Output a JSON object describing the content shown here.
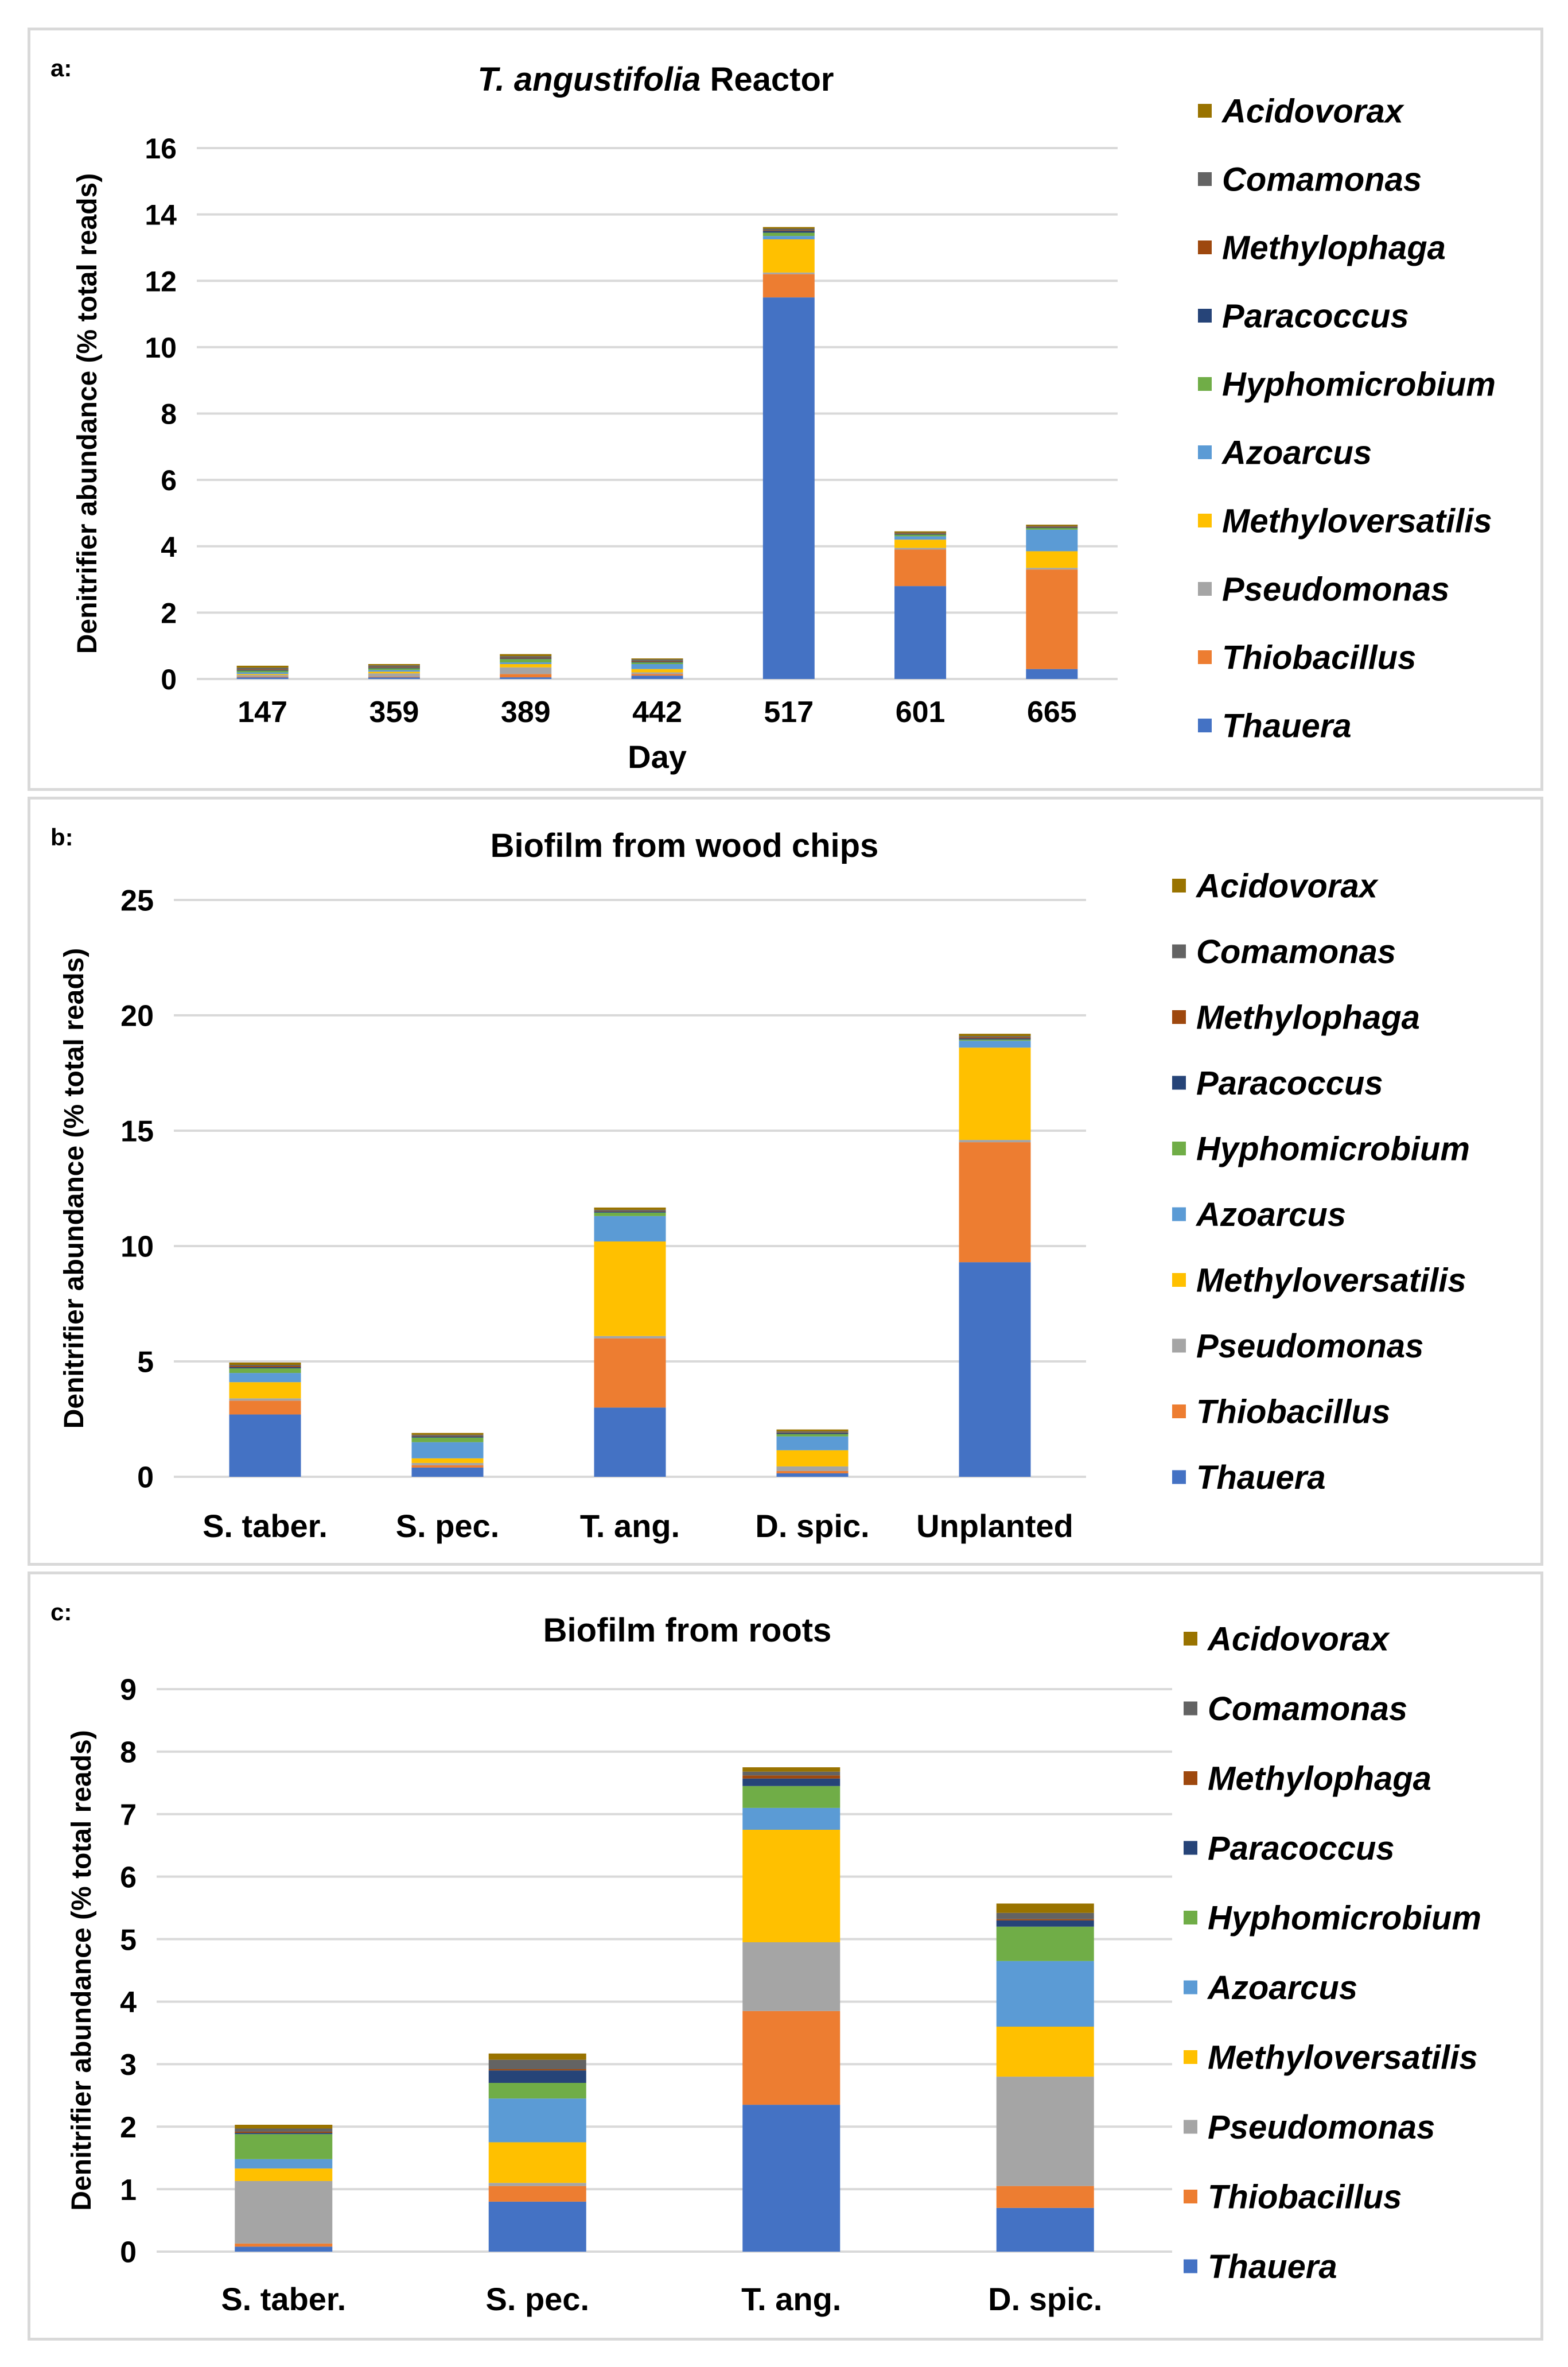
{
  "colors": {
    "Thauera": "#4472C4",
    "Thiobacillus": "#ED7D31",
    "Pseudomonas": "#A5A5A5",
    "Methyloversatilis": "#FFC000",
    "Azoarcus": "#5B9BD5",
    "Hyphomicrobium": "#70AD47",
    "Paracoccus": "#264478",
    "Methylophaga": "#9E480E",
    "Comamonas": "#636363",
    "Acidovorax": "#997300"
  },
  "chart_data": [
    {
      "panel": "a:",
      "type": "bar",
      "stacked": true,
      "title_italic": "T. angustifolia",
      "title_rest": " Reactor",
      "xlabel": "Day",
      "ylabel": "Denitrifier abundance (% total reads)",
      "ylim": [
        0,
        16
      ],
      "yticks": [
        "0",
        "2",
        "4",
        "6",
        "8",
        "10",
        "12",
        "14",
        "16"
      ],
      "grid": true,
      "legend_position": "right",
      "legend": [
        "Acidovorax",
        "Comamonas",
        "Methylophaga",
        "Paracoccus",
        "Hyphomicrobium",
        "Azoarcus",
        "Methyloversatilis",
        "Pseudomonas",
        "Thiobacillus",
        "Thauera"
      ],
      "categories": [
        "147",
        "359",
        "389",
        "442",
        "517",
        "601",
        "665"
      ],
      "series": [
        {
          "name": "Thauera",
          "values": [
            0.05,
            0.05,
            0.05,
            0.1,
            11.5,
            2.8,
            0.3
          ]
        },
        {
          "name": "Thiobacillus",
          "values": [
            0.02,
            0.02,
            0.1,
            0.05,
            0.7,
            1.1,
            3.0
          ]
        },
        {
          "name": "Pseudomonas",
          "values": [
            0.05,
            0.1,
            0.2,
            0.05,
            0.05,
            0.05,
            0.05
          ]
        },
        {
          "name": "Methyloversatilis",
          "values": [
            0.03,
            0.05,
            0.1,
            0.1,
            1.0,
            0.25,
            0.5
          ]
        },
        {
          "name": "Azoarcus",
          "values": [
            0.05,
            0.05,
            0.05,
            0.15,
            0.1,
            0.1,
            0.65
          ]
        },
        {
          "name": "Hyphomicrobium",
          "values": [
            0.05,
            0.05,
            0.1,
            0.05,
            0.1,
            0.05,
            0.05
          ]
        },
        {
          "name": "Paracoccus",
          "values": [
            0.02,
            0.02,
            0.02,
            0.02,
            0.05,
            0.02,
            0.02
          ]
        },
        {
          "name": "Methylophaga",
          "values": [
            0.02,
            0.02,
            0.02,
            0.02,
            0.02,
            0.02,
            0.02
          ]
        },
        {
          "name": "Comamonas",
          "values": [
            0.05,
            0.05,
            0.05,
            0.05,
            0.05,
            0.02,
            0.02
          ]
        },
        {
          "name": "Acidovorax",
          "values": [
            0.06,
            0.04,
            0.06,
            0.03,
            0.05,
            0.04,
            0.04
          ]
        }
      ]
    },
    {
      "panel": "b:",
      "type": "bar",
      "stacked": true,
      "title_italic": "",
      "title_rest": "Biofilm  from wood chips",
      "xlabel": "",
      "ylabel": "Denitrifier abundance  (% total reads)",
      "ylim": [
        0,
        25
      ],
      "yticks": [
        "0",
        "5",
        "10",
        "15",
        "20",
        "25"
      ],
      "grid": true,
      "legend_position": "right",
      "legend": [
        "Acidovorax",
        "Comamonas",
        "Methylophaga",
        "Paracoccus",
        "Hyphomicrobium",
        "Azoarcus",
        "Methyloversatilis",
        "Pseudomonas",
        "Thiobacillus",
        "Thauera"
      ],
      "categories": [
        "S. taber.",
        "S. pec.",
        "T. ang.",
        "D. spic.",
        "Unplanted"
      ],
      "series": [
        {
          "name": "Thauera",
          "values": [
            2.7,
            0.4,
            3.0,
            0.15,
            9.3
          ]
        },
        {
          "name": "Thiobacillus",
          "values": [
            0.6,
            0.1,
            3.0,
            0.1,
            5.2
          ]
        },
        {
          "name": "Pseudomonas",
          "values": [
            0.1,
            0.1,
            0.1,
            0.2,
            0.1
          ]
        },
        {
          "name": "Methyloversatilis",
          "values": [
            0.7,
            0.2,
            4.1,
            0.7,
            4.0
          ]
        },
        {
          "name": "Azoarcus",
          "values": [
            0.4,
            0.7,
            1.1,
            0.6,
            0.3
          ]
        },
        {
          "name": "Hyphomicrobium",
          "values": [
            0.2,
            0.2,
            0.15,
            0.1,
            0.05
          ]
        },
        {
          "name": "Paracoccus",
          "values": [
            0.05,
            0.05,
            0.05,
            0.05,
            0.05
          ]
        },
        {
          "name": "Methylophaga",
          "values": [
            0.05,
            0.02,
            0.02,
            0.02,
            0.05
          ]
        },
        {
          "name": "Comamonas",
          "values": [
            0.05,
            0.05,
            0.05,
            0.05,
            0.05
          ]
        },
        {
          "name": "Acidovorax",
          "values": [
            0.1,
            0.08,
            0.1,
            0.08,
            0.1
          ]
        }
      ]
    },
    {
      "panel": "c:",
      "type": "bar",
      "stacked": true,
      "title_italic": "",
      "title_rest": "Biofilm  from roots",
      "xlabel": "",
      "ylabel": "Denitrifier abundance  (% total reads)",
      "ylim": [
        0,
        9
      ],
      "yticks": [
        "0",
        "1",
        "2",
        "3",
        "4",
        "5",
        "6",
        "7",
        "8",
        "9"
      ],
      "grid": true,
      "legend_position": "right",
      "legend": [
        "Acidovorax",
        "Comamonas",
        "Methylophaga",
        "Paracoccus",
        "Hyphomicrobium",
        "Azoarcus",
        "Methyloversatilis",
        "Pseudomonas",
        "Thiobacillus",
        "Thauera"
      ],
      "categories": [
        "S. taber.",
        "S. pec.",
        "T. ang.",
        "D. spic."
      ],
      "series": [
        {
          "name": "Thauera",
          "values": [
            0.08,
            0.8,
            2.35,
            0.7
          ]
        },
        {
          "name": "Thiobacillus",
          "values": [
            0.05,
            0.25,
            1.5,
            0.35
          ]
        },
        {
          "name": "Pseudomonas",
          "values": [
            1.0,
            0.05,
            1.1,
            1.75
          ]
        },
        {
          "name": "Methyloversatilis",
          "values": [
            0.2,
            0.65,
            1.8,
            0.8
          ]
        },
        {
          "name": "Azoarcus",
          "values": [
            0.15,
            0.7,
            0.35,
            1.05
          ]
        },
        {
          "name": "Hyphomicrobium",
          "values": [
            0.4,
            0.25,
            0.35,
            0.55
          ]
        },
        {
          "name": "Paracoccus",
          "values": [
            0.02,
            0.2,
            0.12,
            0.1
          ]
        },
        {
          "name": "Methylophaga",
          "values": [
            0.02,
            0.02,
            0.05,
            0.02
          ]
        },
        {
          "name": "Comamonas",
          "values": [
            0.05,
            0.15,
            0.06,
            0.1
          ]
        },
        {
          "name": "Acidovorax",
          "values": [
            0.06,
            0.1,
            0.07,
            0.15
          ]
        }
      ]
    }
  ]
}
